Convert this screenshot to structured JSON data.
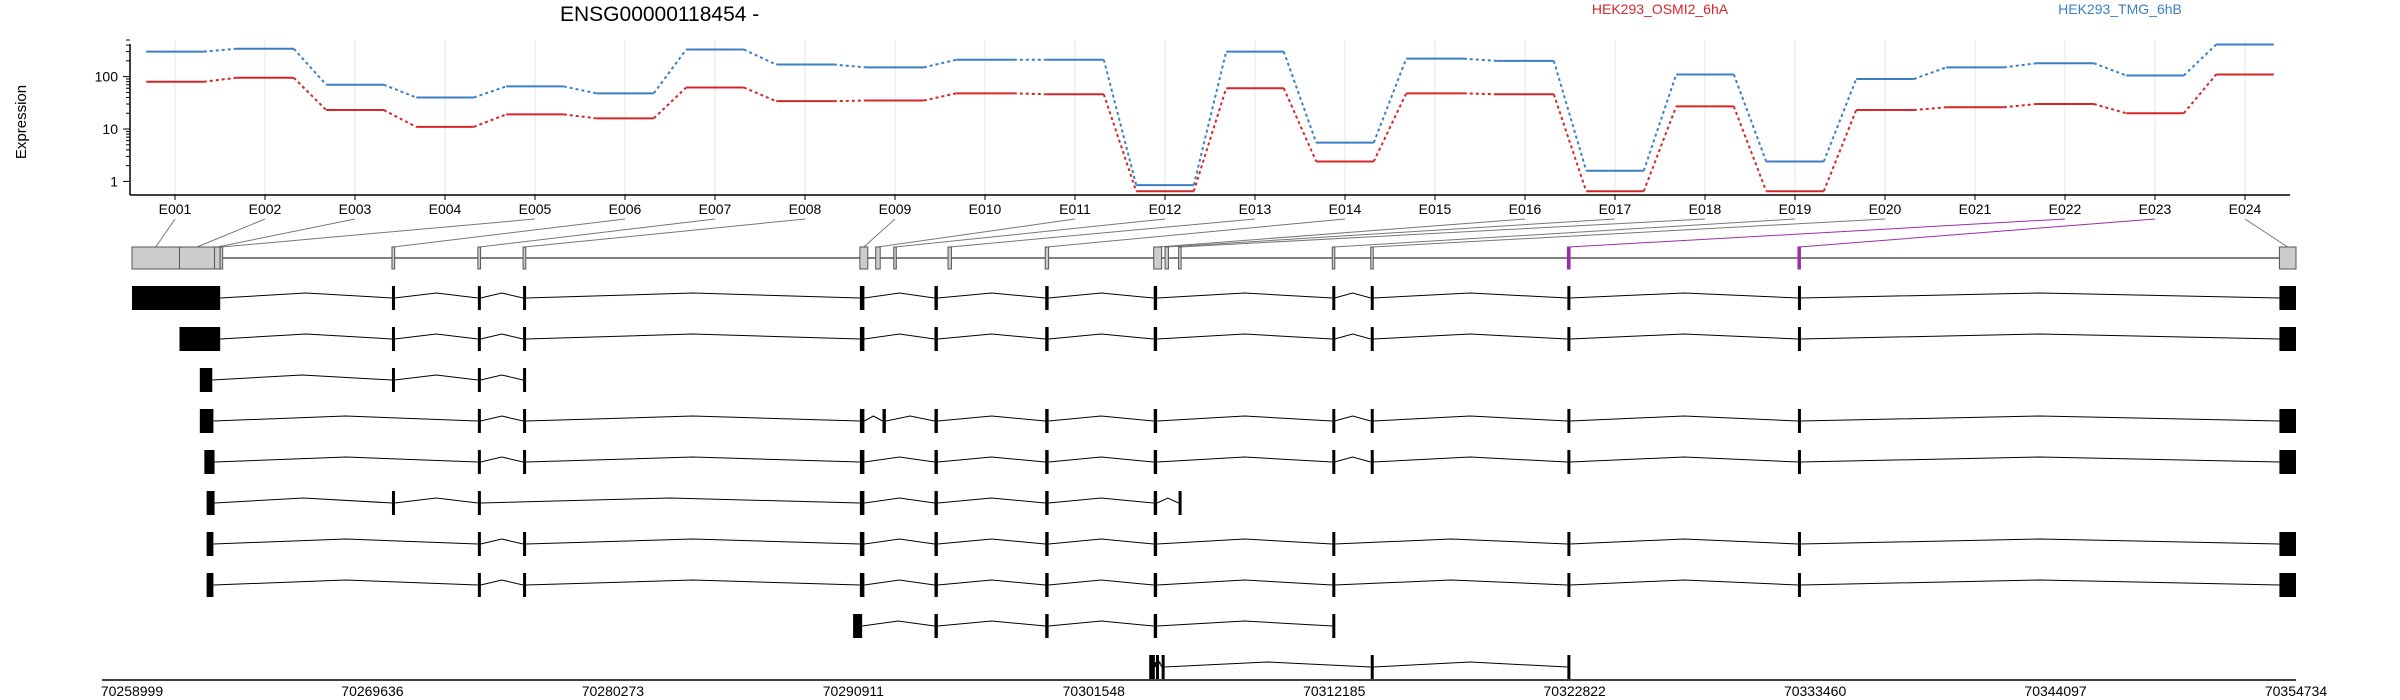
{
  "chart_data": {
    "type": "line",
    "title": "ENSG00000118454 -",
    "ylabel": "Expression",
    "xlabel": "",
    "yscale": "log",
    "ylim": [
      0.55,
      500
    ],
    "yticks": [
      1,
      10,
      100
    ],
    "ytick_labels": [
      "1",
      "10",
      "100"
    ],
    "categories": [
      "E001",
      "E002",
      "E003",
      "E004",
      "E005",
      "E006",
      "E007",
      "E008",
      "E009",
      "E010",
      "E011",
      "E012",
      "E013",
      "E014",
      "E015",
      "E016",
      "E017",
      "E018",
      "E019",
      "E020",
      "E021",
      "E022",
      "E023",
      "E024"
    ],
    "series": [
      {
        "name": "HEK293_OSMI2_6hA",
        "color": "#d62728",
        "values": [
          80,
          95,
          23,
          11,
          19,
          16,
          62,
          34,
          35,
          48,
          46,
          0.65,
          60,
          2.4,
          48,
          46,
          0.65,
          27,
          0.65,
          23,
          26,
          30,
          20,
          110
        ]
      },
      {
        "name": "HEK293_TMG_6hB",
        "color": "#3b7fc4",
        "values": [
          300,
          340,
          70,
          40,
          65,
          48,
          330,
          170,
          150,
          210,
          210,
          0.85,
          300,
          5.5,
          220,
          200,
          1.6,
          110,
          2.4,
          90,
          150,
          180,
          105,
          410
        ]
      }
    ],
    "genomic_axis": {
      "start": 70258999,
      "end": 70354734,
      "tick_labels": [
        "70258999",
        "70269636",
        "70280273",
        "70290911",
        "70301548",
        "70312185",
        "70322822",
        "70333460",
        "70344097",
        "70354734"
      ]
    },
    "exon_spans": [
      [
        70258999,
        70261100
      ],
      [
        70261100,
        70262650
      ],
      [
        70262650,
        70262900
      ],
      [
        70262900,
        70263000
      ],
      [
        70270500,
        70270620
      ],
      [
        70274300,
        70274420
      ],
      [
        70276300,
        70276420
      ],
      [
        70291200,
        70291550
      ],
      [
        70291900,
        70292100
      ],
      [
        70292700,
        70292800
      ],
      [
        70295100,
        70295250
      ],
      [
        70299400,
        70299550
      ],
      [
        70304200,
        70304550
      ],
      [
        70304700,
        70304850
      ],
      [
        70305300,
        70305400
      ],
      [
        70312100,
        70312200
      ],
      [
        70313800,
        70313900
      ],
      [
        70322500,
        70322620
      ],
      [
        70332700,
        70332800
      ],
      [
        70354000,
        70354734
      ]
    ],
    "highlighted_exons": [
      17,
      18
    ],
    "transcripts": [
      {
        "exons": [
          [
            70258999,
            70262900
          ],
          [
            70270500,
            70270620
          ],
          [
            70274300,
            70274420
          ],
          [
            70276300,
            70276420
          ],
          [
            70291200,
            70291400
          ],
          [
            70294500,
            70294650
          ],
          [
            70299400,
            70299550
          ],
          [
            70304200,
            70304350
          ],
          [
            70312100,
            70312200
          ],
          [
            70313800,
            70313900
          ],
          [
            70322500,
            70322620
          ],
          [
            70332700,
            70332800
          ],
          [
            70354000,
            70354734
          ]
        ]
      },
      {
        "exons": [
          [
            70261100,
            70262900
          ],
          [
            70270500,
            70270620
          ],
          [
            70274300,
            70274420
          ],
          [
            70276300,
            70276420
          ],
          [
            70291200,
            70291400
          ],
          [
            70294500,
            70294650
          ],
          [
            70299400,
            70299550
          ],
          [
            70304200,
            70304350
          ],
          [
            70312100,
            70312200
          ],
          [
            70313800,
            70313900
          ],
          [
            70322500,
            70322620
          ],
          [
            70332700,
            70332800
          ],
          [
            70354000,
            70354734
          ]
        ]
      },
      {
        "exons": [
          [
            70262000,
            70262550
          ],
          [
            70270500,
            70270620
          ],
          [
            70274300,
            70274420
          ],
          [
            70276300,
            70276420
          ]
        ]
      },
      {
        "exons": [
          [
            70262000,
            70262600
          ],
          [
            70274300,
            70274420
          ],
          [
            70276300,
            70276420
          ],
          [
            70291200,
            70291400
          ],
          [
            70292200,
            70292350
          ],
          [
            70294500,
            70294650
          ],
          [
            70299400,
            70299550
          ],
          [
            70304200,
            70304350
          ],
          [
            70312100,
            70312200
          ],
          [
            70313800,
            70313900
          ],
          [
            70322500,
            70322620
          ],
          [
            70332700,
            70332800
          ],
          [
            70354000,
            70354734
          ]
        ]
      },
      {
        "exons": [
          [
            70262200,
            70262650
          ],
          [
            70274300,
            70274420
          ],
          [
            70276300,
            70276420
          ],
          [
            70291200,
            70291400
          ],
          [
            70294500,
            70294650
          ],
          [
            70299400,
            70299550
          ],
          [
            70304200,
            70304350
          ],
          [
            70312100,
            70312200
          ],
          [
            70313800,
            70313900
          ],
          [
            70322500,
            70322620
          ],
          [
            70332700,
            70332800
          ],
          [
            70354000,
            70354734
          ]
        ]
      },
      {
        "exons": [
          [
            70262300,
            70262650
          ],
          [
            70270500,
            70270620
          ],
          [
            70274300,
            70274420
          ],
          [
            70291200,
            70291400
          ],
          [
            70294500,
            70294650
          ],
          [
            70299400,
            70299550
          ],
          [
            70304200,
            70304350
          ],
          [
            70305300,
            70305400
          ]
        ]
      },
      {
        "exons": [
          [
            70262300,
            70262600
          ],
          [
            70274300,
            70274420
          ],
          [
            70276300,
            70276420
          ],
          [
            70291200,
            70291400
          ],
          [
            70294500,
            70294650
          ],
          [
            70299400,
            70299550
          ],
          [
            70304200,
            70304350
          ],
          [
            70312100,
            70312200
          ],
          [
            70322500,
            70322620
          ],
          [
            70332700,
            70332800
          ],
          [
            70354000,
            70354734
          ]
        ]
      },
      {
        "exons": [
          [
            70262300,
            70262600
          ],
          [
            70274300,
            70274420
          ],
          [
            70276300,
            70276420
          ],
          [
            70291200,
            70291400
          ],
          [
            70294500,
            70294650
          ],
          [
            70299400,
            70299550
          ],
          [
            70304200,
            70304350
          ],
          [
            70312100,
            70312200
          ],
          [
            70322500,
            70322620
          ],
          [
            70332700,
            70332800
          ],
          [
            70354000,
            70354734
          ]
        ]
      },
      {
        "exons": [
          [
            70290900,
            70291300
          ],
          [
            70294500,
            70294650
          ],
          [
            70299400,
            70299550
          ],
          [
            70304200,
            70304350
          ],
          [
            70312100,
            70312200
          ]
        ]
      },
      {
        "exons": [
          [
            70304000,
            70304250
          ],
          [
            70304300,
            70304380
          ],
          [
            70304550,
            70304650
          ],
          [
            70313800,
            70313900
          ],
          [
            70322500,
            70322620
          ]
        ]
      }
    ]
  }
}
